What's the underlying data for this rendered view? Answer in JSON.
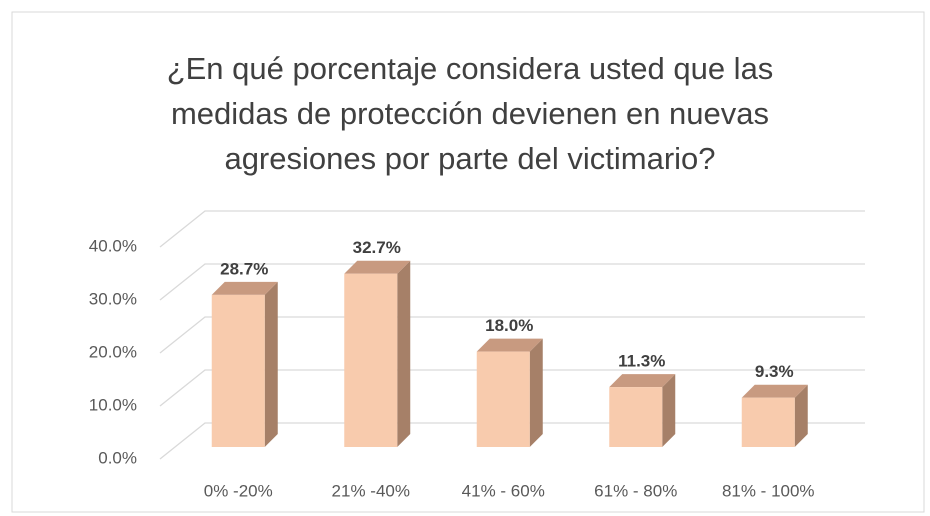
{
  "chart_data": {
    "type": "bar3d",
    "title": "¿En qué porcentaje considera usted que las medidas de protección devienen en nuevas agresiones por parte del victimario?",
    "categories": [
      "0% -20%",
      "21% -40%",
      "41% - 60%",
      "61% - 80%",
      "81% - 100%"
    ],
    "values": [
      28.7,
      32.7,
      18.0,
      11.3,
      9.3
    ],
    "value_labels": [
      "28.7%",
      "32.7%",
      "18.0%",
      "11.3%",
      "9.3%"
    ],
    "color": "#f8cbad",
    "ylim": [
      0,
      40
    ],
    "yticks": [
      {
        "value": 0,
        "label": "0.0%"
      },
      {
        "value": 10,
        "label": "10.0%"
      },
      {
        "value": 20,
        "label": "20.0%"
      },
      {
        "value": 30,
        "label": "30.0%"
      },
      {
        "value": 40,
        "label": "40.0%"
      }
    ],
    "grid": true
  }
}
